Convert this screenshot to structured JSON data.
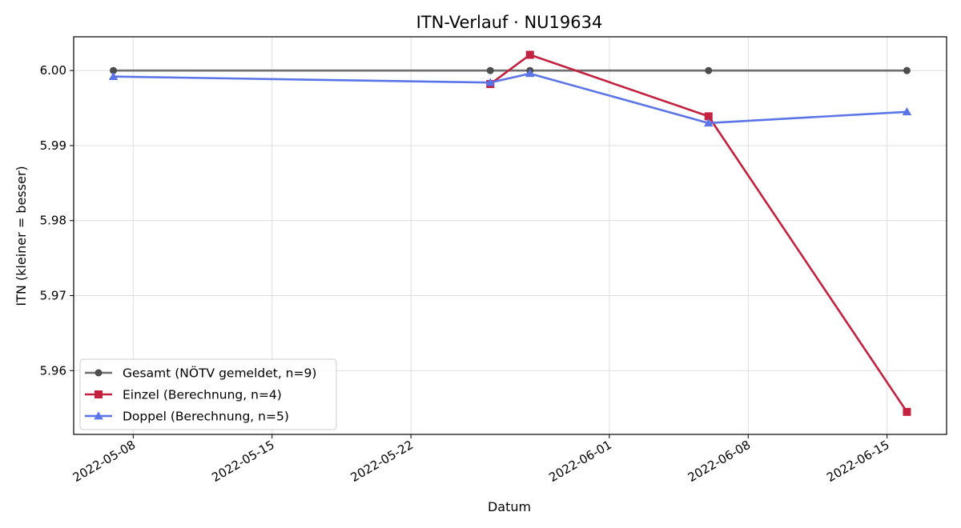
{
  "chart_data": {
    "type": "line",
    "title": "ITN-Verlauf · NU19634",
    "xlabel": "Datum",
    "ylabel": "ITN  (kleiner = besser)",
    "x_type": "date",
    "xlim": [
      "2022-05-05",
      "2022-06-18"
    ],
    "ylim": [
      5.9515,
      6.0045
    ],
    "x_ticks": [
      "2022-05-08",
      "2022-05-15",
      "2022-05-22",
      "2022-06-01",
      "2022-06-08",
      "2022-06-15"
    ],
    "y_ticks": [
      5.96,
      5.97,
      5.98,
      5.99,
      6.0
    ],
    "y_tick_labels": [
      "5.96",
      "5.97",
      "5.98",
      "5.99",
      "6.00"
    ],
    "grid": true,
    "legend_position": "lower-left",
    "series": [
      {
        "name": "Gesamt (NÖTV gemeldet, n=9)",
        "color": "#6e6e6e",
        "marker_color": "#4d4d4d",
        "marker": "circle",
        "points": [
          {
            "x": "2022-05-07",
            "y": 6.0
          },
          {
            "x": "2022-05-26",
            "y": 6.0
          },
          {
            "x": "2022-05-28",
            "y": 6.0
          },
          {
            "x": "2022-06-06",
            "y": 6.0
          },
          {
            "x": "2022-06-16",
            "y": 6.0
          }
        ]
      },
      {
        "name": "Einzel (Berechnung, n=4)",
        "color": "#c3213f",
        "marker_color": "#c3213f",
        "marker": "square",
        "points": [
          {
            "x": "2022-05-26",
            "y": 5.9982
          },
          {
            "x": "2022-05-28",
            "y": 6.0021
          },
          {
            "x": "2022-06-06",
            "y": 5.9939
          },
          {
            "x": "2022-06-16",
            "y": 5.9545
          }
        ]
      },
      {
        "name": "Doppel (Berechnung, n=5)",
        "color": "#5b74e8",
        "marker_color": "#5b74e8",
        "marker": "triangle",
        "points": [
          {
            "x": "2022-05-07",
            "y": 5.9992
          },
          {
            "x": "2022-05-26",
            "y": 5.9984
          },
          {
            "x": "2022-05-28",
            "y": 5.9996
          },
          {
            "x": "2022-06-06",
            "y": 5.993
          },
          {
            "x": "2022-06-16",
            "y": 5.9945
          }
        ]
      }
    ]
  }
}
